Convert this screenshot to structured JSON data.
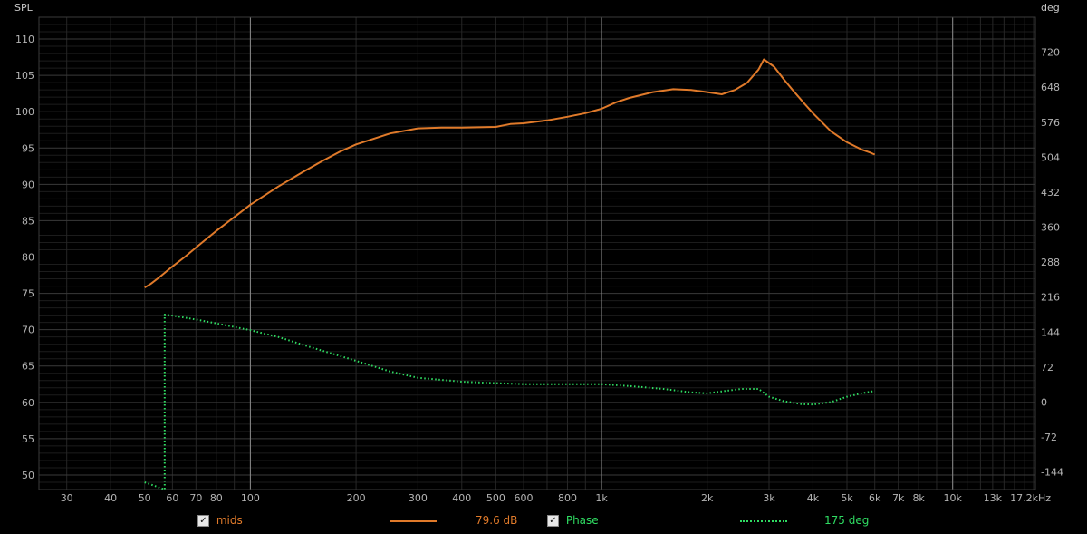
{
  "chart_data": {
    "type": "line",
    "xscale": "log",
    "xlim": [
      25,
      17200
    ],
    "ylim_left": [
      48,
      113
    ],
    "ylim_right": [
      -180,
      792
    ],
    "ylabel_left": "SPL",
    "ylabel_right": "deg",
    "x_tick_values": [
      30,
      40,
      50,
      60,
      70,
      80,
      100,
      200,
      300,
      400,
      500,
      600,
      800,
      1000,
      2000,
      3000,
      4000,
      5000,
      6000,
      7000,
      8000,
      10000,
      13000,
      17200
    ],
    "x_tick_labels": [
      "30",
      "40",
      "50",
      "60",
      "70",
      "80",
      "100",
      "200",
      "300",
      "400",
      "500",
      "600",
      "800",
      "1k",
      "2k",
      "3k",
      "4k",
      "5k",
      "6k",
      "7k",
      "8k",
      "10k",
      "13k",
      "17.2kHz"
    ],
    "y_left_ticks": [
      50,
      55,
      60,
      65,
      70,
      75,
      80,
      85,
      90,
      95,
      100,
      105,
      110
    ],
    "y_right_ticks": [
      -144,
      -72,
      0,
      72,
      144,
      216,
      288,
      360,
      432,
      504,
      576,
      648,
      720
    ],
    "grid": true,
    "series": [
      {
        "name": "mids",
        "axis": "left",
        "color": "#e07a2a",
        "style": "solid",
        "x": [
          50,
          52,
          55,
          60,
          65,
          70,
          75,
          80,
          90,
          100,
          120,
          140,
          160,
          180,
          200,
          250,
          300,
          350,
          400,
          500,
          550,
          600,
          700,
          800,
          900,
          1000,
          1100,
          1200,
          1400,
          1600,
          1800,
          2000,
          2200,
          2400,
          2600,
          2800,
          2900,
          3100,
          3300,
          3500,
          3800,
          4000,
          4500,
          5000,
          5500,
          5800,
          6000
        ],
        "y": [
          75.8,
          76.3,
          77.2,
          78.7,
          80.0,
          81.3,
          82.5,
          83.6,
          85.5,
          87.2,
          89.7,
          91.6,
          93.2,
          94.5,
          95.5,
          97.0,
          97.7,
          97.8,
          97.8,
          97.9,
          98.3,
          98.4,
          98.8,
          99.3,
          99.8,
          100.4,
          101.3,
          101.9,
          102.7,
          103.1,
          103.0,
          102.7,
          102.4,
          103.0,
          104.0,
          105.8,
          107.2,
          106.2,
          104.5,
          103.0,
          101.0,
          99.8,
          97.3,
          95.8,
          94.8,
          94.4,
          94.1
        ]
      },
      {
        "name": "Phase",
        "axis": "right",
        "color": "#2fdc62",
        "style": "dotted",
        "x": [
          50,
          57,
          57,
          60,
          70,
          80,
          100,
          120,
          150,
          200,
          250,
          300,
          400,
          500,
          600,
          800,
          1000,
          1200,
          1500,
          1800,
          2000,
          2200,
          2500,
          2800,
          3000,
          3300,
          3700,
          4000,
          4500,
          5000,
          5500,
          6000
        ],
        "y": [
          -165,
          -185,
          180,
          178,
          170,
          162,
          148,
          134,
          112,
          85,
          63,
          50,
          42,
          39,
          37,
          37,
          37,
          33,
          27,
          20,
          18,
          22,
          27,
          27,
          11,
          2,
          -4,
          -5,
          0,
          11,
          18,
          23
        ]
      }
    ]
  },
  "legend": {
    "mids_label": "mids",
    "mids_value": "79.6 dB",
    "phase_label": "Phase",
    "phase_value": "175 deg",
    "check_glyph": "✓"
  }
}
